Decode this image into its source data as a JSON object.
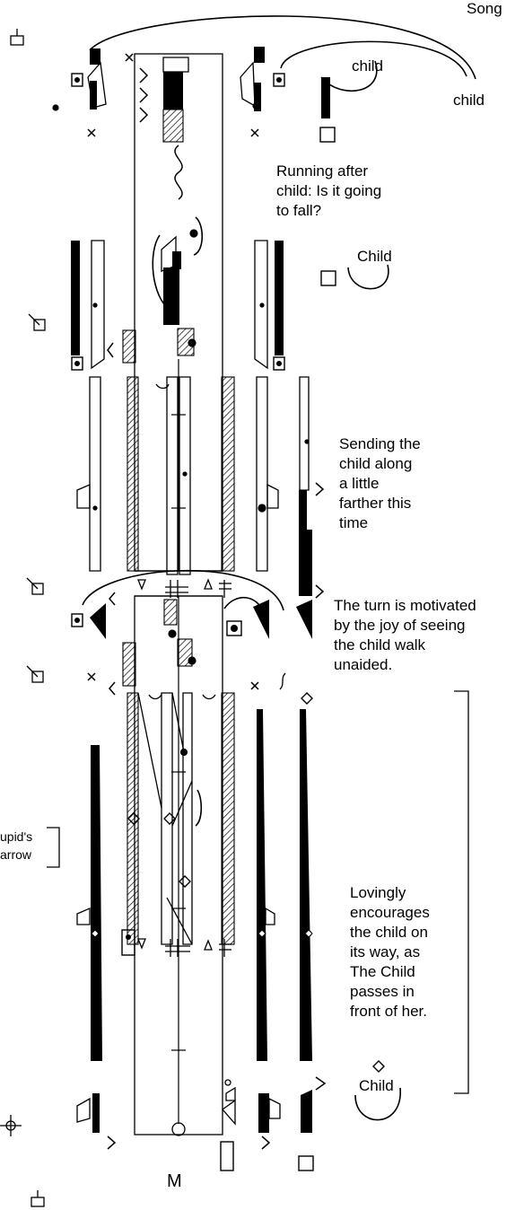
{
  "page": {
    "corner_title": "Song",
    "staff_letter": "M",
    "palette": {
      "ink": "#000000",
      "paper": "#ffffff"
    }
  },
  "labels": {
    "child_top_sign": "child",
    "child_top_right": "child",
    "child_mid": "Child",
    "child_bottom": "Child"
  },
  "notes": {
    "running": "Running after\nchild:  Is it going\nto fall?",
    "sending": "Sending the\nchild along\na little\nfarther this\ntime",
    "turn": "The turn is motivated\nby the joy of seeing\nthe child walk\nunaided.",
    "cupid": "upid's\narrow",
    "lovingly": "Lovingly\nencourages\nthe child  on\nits way, as\nThe Child\npasses in\nfront of her."
  },
  "symbols": {
    "pin_icon": "pin-icon",
    "direction_icon": "direction-sign-icon",
    "diamond_icon": "diamond-icon",
    "hold_icon": "hold-sign-icon"
  }
}
